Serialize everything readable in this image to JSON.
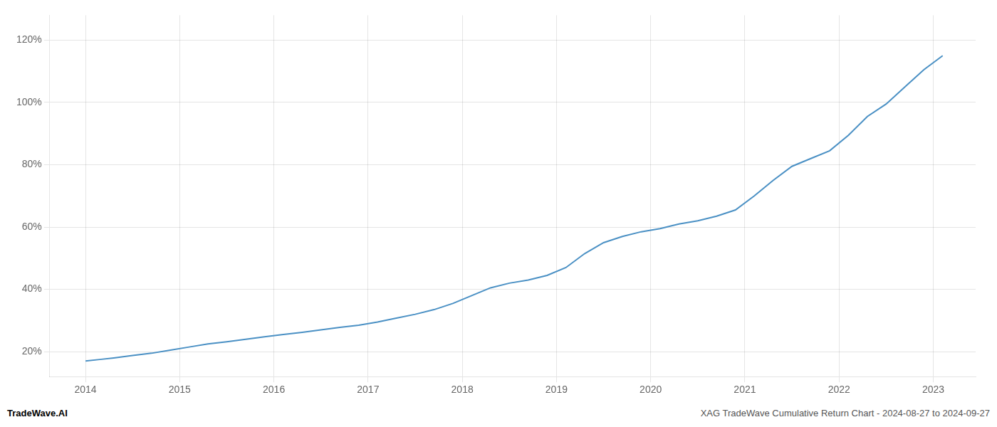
{
  "chart_data": {
    "type": "line",
    "x": [
      2014.0,
      2014.15,
      2014.3,
      2014.5,
      2014.7,
      2014.9,
      2015.1,
      2015.3,
      2015.5,
      2015.7,
      2015.9,
      2016.1,
      2016.3,
      2016.5,
      2016.7,
      2016.9,
      2017.1,
      2017.3,
      2017.5,
      2017.7,
      2017.9,
      2018.1,
      2018.3,
      2018.5,
      2018.7,
      2018.9,
      2019.1,
      2019.3,
      2019.5,
      2019.7,
      2019.9,
      2020.1,
      2020.3,
      2020.5,
      2020.7,
      2020.9,
      2021.1,
      2021.3,
      2021.5,
      2021.7,
      2021.9,
      2022.1,
      2022.3,
      2022.5,
      2022.7,
      2022.9,
      2023.1
    ],
    "values": [
      17.0,
      17.5,
      18.0,
      18.8,
      19.5,
      20.5,
      21.5,
      22.5,
      23.2,
      24.0,
      24.8,
      25.5,
      26.2,
      27.0,
      27.8,
      28.5,
      29.5,
      30.8,
      32.0,
      33.5,
      35.5,
      38.0,
      40.5,
      42.0,
      43.0,
      44.5,
      47.0,
      51.5,
      55.0,
      57.0,
      58.5,
      59.5,
      61.0,
      62.0,
      63.5,
      65.5,
      70.0,
      75.0,
      79.5,
      82.0,
      84.5,
      89.5,
      95.5,
      99.5,
      105.0,
      110.5,
      115.0
    ],
    "color": "#4a90c4",
    "xlim": [
      2013.62,
      2023.45
    ],
    "xticks": [
      2014,
      2015,
      2016,
      2017,
      2018,
      2019,
      2020,
      2021,
      2022,
      2023
    ],
    "ylim": [
      12,
      128
    ],
    "yticks": [
      {
        "value": 20,
        "label": "20%"
      },
      {
        "value": 40,
        "label": "40%"
      },
      {
        "value": 60,
        "label": "60%"
      },
      {
        "value": 80,
        "label": "80%"
      },
      {
        "value": 100,
        "label": "100%"
      },
      {
        "value": 120,
        "label": "120%"
      }
    ],
    "grid": true,
    "annotations": [
      "TradeWave.AI",
      "XAG TradeWave Cumulative Return Chart - 2024-08-27 to 2024-09-27"
    ]
  }
}
